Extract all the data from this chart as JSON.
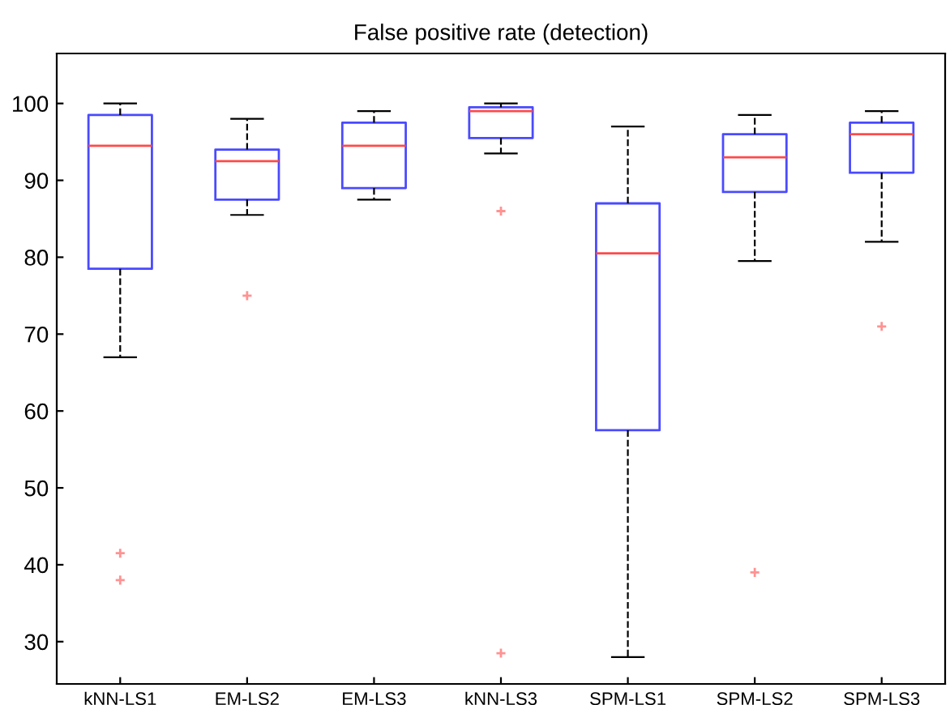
{
  "chart_data": {
    "type": "box",
    "title": "False positive rate (detection)",
    "categories": [
      "kNN-LS1",
      "EM-LS2",
      "EM-LS3",
      "kNN-LS3",
      "SPM-LS1",
      "SPM-LS2",
      "SPM-LS3"
    ],
    "boxes": [
      {
        "low": 67,
        "q1": 78.5,
        "median": 94.5,
        "q3": 98.5,
        "high": 100,
        "outliers": [
          41.5,
          38
        ]
      },
      {
        "low": 85.5,
        "q1": 87.5,
        "median": 92.5,
        "q3": 94,
        "high": 98,
        "outliers": [
          75
        ]
      },
      {
        "low": 87.5,
        "q1": 89,
        "median": 94.5,
        "q3": 97.5,
        "high": 99
      },
      {
        "low": 93.5,
        "q1": 95.5,
        "median": 99,
        "q3": 99.5,
        "high": 100,
        "outliers": [
          86,
          28.5
        ]
      },
      {
        "low": 28,
        "q1": 57.5,
        "median": 80.5,
        "q3": 87,
        "high": 97
      },
      {
        "low": 79.5,
        "q1": 88.5,
        "median": 93,
        "q3": 96,
        "high": 98.5,
        "outliers": [
          39
        ]
      },
      {
        "low": 82,
        "q1": 91,
        "median": 96,
        "q3": 97.5,
        "high": 99,
        "outliers": [
          71
        ]
      }
    ],
    "color": "#4a4aff",
    "ylim": [
      24.5,
      106.5
    ],
    "yticks": [
      30,
      40,
      50,
      60,
      70,
      80,
      90,
      100
    ],
    "grid": false
  }
}
